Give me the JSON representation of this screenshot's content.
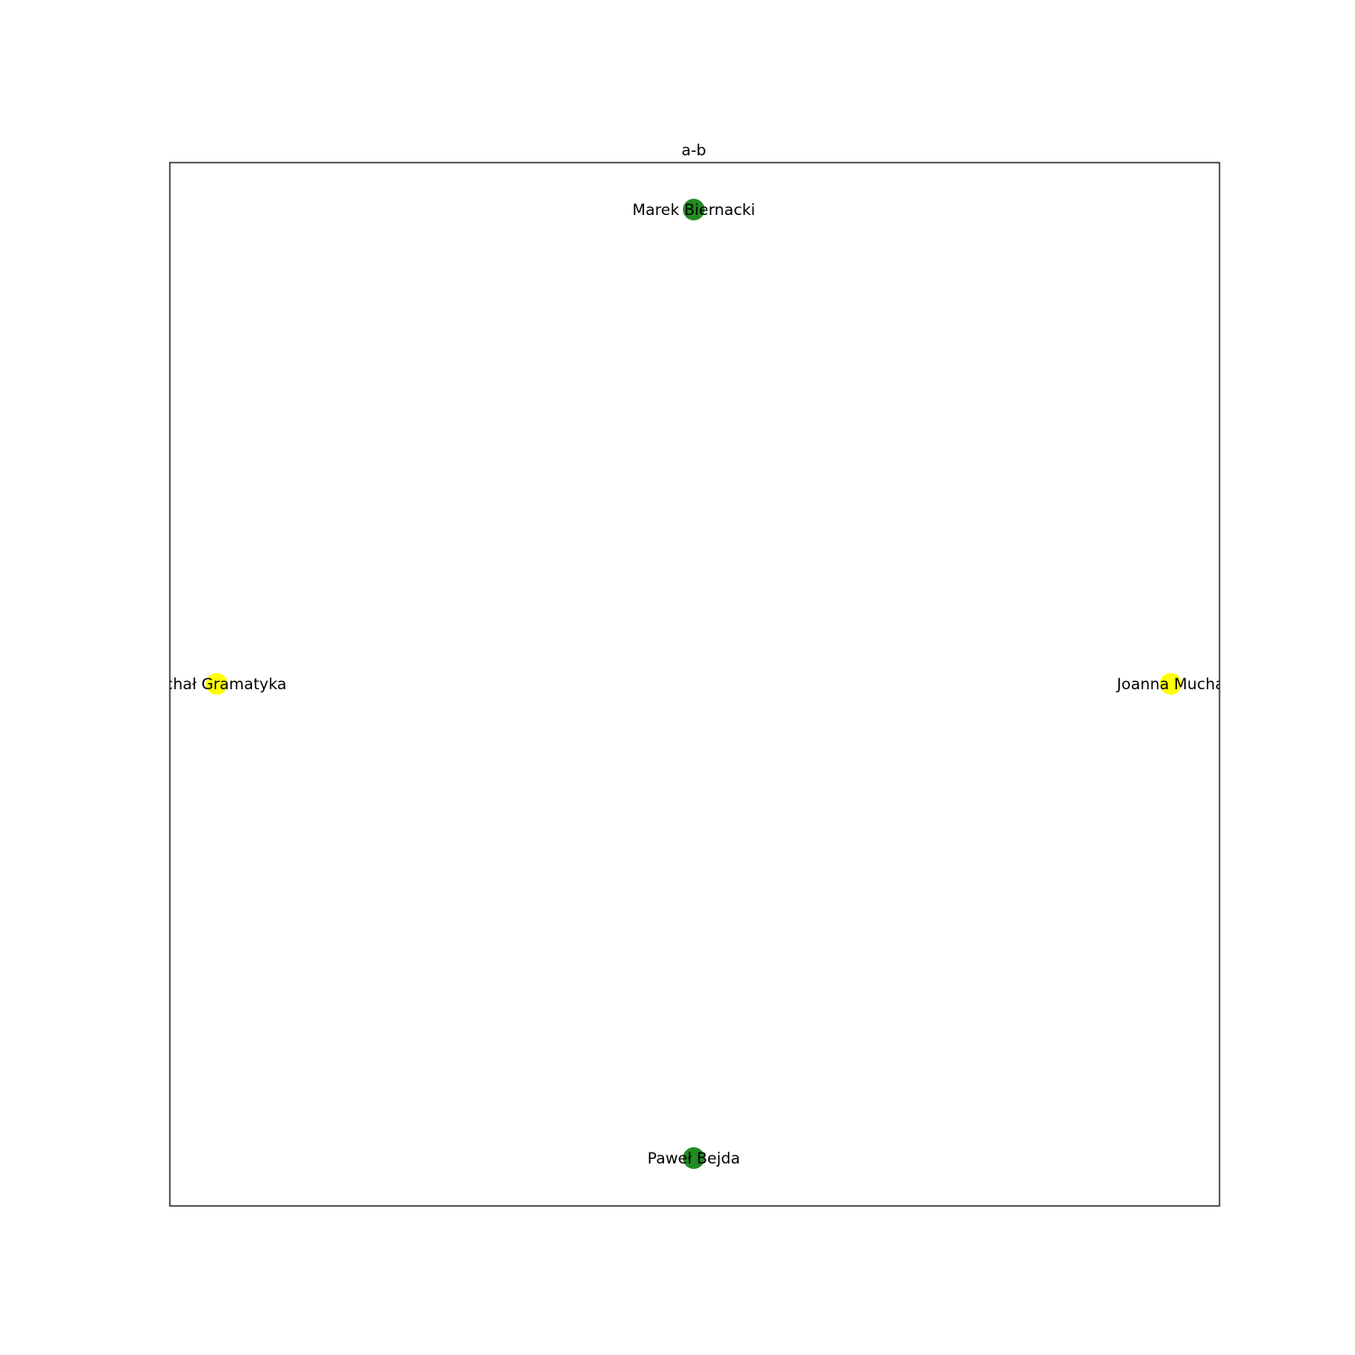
{
  "title": "a-b",
  "nodes": [
    {
      "id": "marek",
      "label": "Marek Biernacki",
      "color": "#228b22"
    },
    {
      "id": "michal",
      "label": "Michał Gramatyka",
      "color": "#ffff00"
    },
    {
      "id": "joanna",
      "label": "Joanna Mucha",
      "color": "#ffff00"
    },
    {
      "id": "pawel",
      "label": "Paweł Bejda",
      "color": "#228b22"
    }
  ],
  "edges": []
}
